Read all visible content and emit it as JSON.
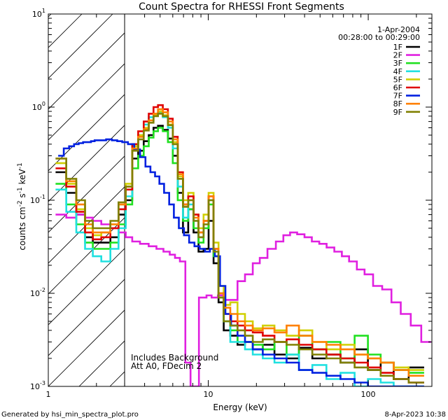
{
  "chart_data": {
    "type": "line",
    "title": "Count Spectra for RHESSI Front Segments",
    "xlabel": "Energy (keV)",
    "ylabel_parts": {
      "base": "counts cm",
      "exp1": "-2",
      "mid": " s",
      "exp2": "-1",
      "mid2": " keV",
      "exp3": "-1"
    },
    "x_scale": "log",
    "y_scale": "log",
    "xlim": [
      1,
      250
    ],
    "ylim": [
      0.001,
      10
    ],
    "x_ticks": [
      {
        "value": 1,
        "label": "1"
      },
      {
        "value": 10,
        "label": "10"
      },
      {
        "value": 100,
        "label": "100"
      }
    ],
    "y_ticks": [
      {
        "value": 0.001,
        "base": "10",
        "exp": "-3"
      },
      {
        "value": 0.01,
        "base": "10",
        "exp": "-2"
      },
      {
        "value": 0.1,
        "base": "10",
        "exp": "-1"
      },
      {
        "value": 1,
        "base": "10",
        "exp": "0"
      },
      {
        "value": 10,
        "base": "10",
        "exp": "1"
      }
    ],
    "hatched_region": {
      "x_from": 1,
      "x_to": 3
    },
    "legend": {
      "date": "1-Apr-2004",
      "time_range": "00:28:00 to 00:29:00",
      "position": "top-right"
    },
    "annotations": [
      "Includes Background",
      "Att A0, FDecim 2"
    ],
    "series": [
      {
        "name": "1F",
        "color": "#000000",
        "x": [
          1.2,
          1.4,
          1.6,
          1.8,
          2.0,
          2.3,
          2.6,
          2.9,
          3.2,
          3.5,
          3.8,
          4.1,
          4.4,
          4.7,
          5.0,
          5.4,
          5.8,
          6.2,
          6.7,
          7.2,
          7.8,
          8.4,
          9.0,
          9.7,
          10.4,
          11.2,
          12.0,
          13.0,
          14.5,
          16.0,
          18.0,
          20.0,
          24.0,
          28.0,
          34.0,
          40.0,
          50.0,
          60.0,
          75.0,
          90.0,
          110.0,
          130.0,
          160.0,
          200.0
        ],
        "y": [
          0.2,
          0.12,
          0.07,
          0.04,
          0.035,
          0.035,
          0.04,
          0.07,
          0.1,
          0.28,
          0.34,
          0.43,
          0.5,
          0.6,
          0.63,
          0.57,
          0.46,
          0.3,
          0.12,
          0.045,
          0.08,
          0.045,
          0.028,
          0.03,
          0.06,
          0.021,
          0.008,
          0.004,
          0.0035,
          0.0028,
          0.003,
          0.0025,
          0.0028,
          0.0022,
          0.002,
          0.0026,
          0.002,
          0.0022,
          0.0018,
          0.0025,
          0.0015,
          0.0018,
          0.0012,
          0.0016
        ]
      },
      {
        "name": "2F",
        "color": "#e020e0",
        "x": [
          1.2,
          1.4,
          1.6,
          1.8,
          2.0,
          2.3,
          2.6,
          2.9,
          3.2,
          3.5,
          4.0,
          4.5,
          5.0,
          5.5,
          6.0,
          6.4,
          6.9,
          7.5,
          8.0,
          8.5,
          9.0,
          9.5,
          10.0,
          11.0,
          12.0,
          13.0,
          14.5,
          16.0,
          18.0,
          20.0,
          22.0,
          25.0,
          28.0,
          31.0,
          34.0,
          38.0,
          42.0,
          47.0,
          52.0,
          58.0,
          65.0,
          72.0,
          80.0,
          90.0,
          100.0,
          115.0,
          130.0,
          150.0,
          170.0,
          200.0,
          230.0
        ],
        "y": [
          0.07,
          0.065,
          0.07,
          0.065,
          0.06,
          0.055,
          0.05,
          0.045,
          0.04,
          0.036,
          0.034,
          0.032,
          0.03,
          0.028,
          0.026,
          0.024,
          0.022,
          0.0018,
          0.001,
          0.001,
          0.009,
          0.009,
          0.0095,
          0.009,
          0.0095,
          0.0085,
          0.0085,
          0.0135,
          0.016,
          0.021,
          0.024,
          0.03,
          0.036,
          0.042,
          0.045,
          0.043,
          0.04,
          0.036,
          0.034,
          0.031,
          0.028,
          0.025,
          0.022,
          0.018,
          0.016,
          0.012,
          0.011,
          0.008,
          0.006,
          0.0045,
          0.003
        ]
      },
      {
        "name": "3F",
        "color": "#20e020",
        "x": [
          1.2,
          1.4,
          1.6,
          1.8,
          2.0,
          2.3,
          2.6,
          2.9,
          3.2,
          3.5,
          3.8,
          4.1,
          4.4,
          4.7,
          5.0,
          5.4,
          5.8,
          6.2,
          6.7,
          7.2,
          7.8,
          8.4,
          9.0,
          9.7,
          10.4,
          11.2,
          12.0,
          13.0,
          14.5,
          16.0,
          18.0,
          20.0,
          24.0,
          28.0,
          34.0,
          40.0,
          50.0,
          60.0,
          75.0,
          90.0,
          110.0,
          130.0,
          160.0,
          200.0
        ],
        "y": [
          0.15,
          0.09,
          0.055,
          0.035,
          0.03,
          0.03,
          0.035,
          0.055,
          0.09,
          0.22,
          0.3,
          0.38,
          0.47,
          0.55,
          0.6,
          0.55,
          0.42,
          0.25,
          0.1,
          0.06,
          0.08,
          0.05,
          0.035,
          0.05,
          0.09,
          0.025,
          0.009,
          0.005,
          0.004,
          0.003,
          0.003,
          0.0028,
          0.0025,
          0.003,
          0.0022,
          0.0035,
          0.0025,
          0.003,
          0.002,
          0.0035,
          0.0022,
          0.0018,
          0.0015,
          0.0014
        ]
      },
      {
        "name": "4F",
        "color": "#20e0e0",
        "x": [
          1.2,
          1.4,
          1.6,
          1.8,
          2.0,
          2.3,
          2.6,
          2.9,
          3.2,
          3.5,
          3.8,
          4.1,
          4.4,
          4.7,
          5.0,
          5.4,
          5.8,
          6.2,
          6.7,
          7.2,
          7.8,
          8.4,
          9.0,
          9.7,
          10.4,
          11.2,
          12.0,
          13.0,
          14.5,
          16.0,
          18.0,
          20.0,
          24.0,
          28.0,
          34.0,
          40.0,
          50.0,
          60.0,
          75.0,
          90.0,
          110.0,
          130.0,
          160.0,
          200.0
        ],
        "y": [
          0.13,
          0.075,
          0.045,
          0.03,
          0.025,
          0.022,
          0.03,
          0.05,
          0.11,
          0.35,
          0.5,
          0.65,
          0.78,
          0.85,
          0.88,
          0.78,
          0.6,
          0.36,
          0.14,
          0.065,
          0.09,
          0.06,
          0.04,
          0.06,
          0.1,
          0.03,
          0.01,
          0.005,
          0.003,
          0.003,
          0.0025,
          0.0022,
          0.002,
          0.0018,
          0.0022,
          0.0015,
          0.0017,
          0.0012,
          0.0014,
          0.001,
          0.0012,
          0.0011,
          0.001,
          0.001
        ]
      },
      {
        "name": "5F",
        "color": "#d0d000",
        "x": [
          1.2,
          1.4,
          1.6,
          1.8,
          2.0,
          2.3,
          2.6,
          2.9,
          3.2,
          3.5,
          3.8,
          4.1,
          4.4,
          4.7,
          5.0,
          5.4,
          5.8,
          6.2,
          6.7,
          7.2,
          7.8,
          8.4,
          9.0,
          9.7,
          10.4,
          11.2,
          12.0,
          13.0,
          14.5,
          16.0,
          18.0,
          20.0,
          24.0,
          28.0,
          34.0,
          40.0,
          50.0,
          60.0,
          75.0,
          90.0,
          110.0,
          130.0,
          160.0,
          200.0
        ],
        "y": [
          0.25,
          0.15,
          0.08,
          0.05,
          0.042,
          0.045,
          0.055,
          0.09,
          0.15,
          0.38,
          0.5,
          0.6,
          0.72,
          0.82,
          0.9,
          0.82,
          0.65,
          0.42,
          0.18,
          0.1,
          0.12,
          0.07,
          0.05,
          0.07,
          0.12,
          0.035,
          0.012,
          0.0075,
          0.008,
          0.006,
          0.005,
          0.0042,
          0.0045,
          0.004,
          0.0035,
          0.004,
          0.003,
          0.0025,
          0.0028,
          0.0022,
          0.002,
          0.0018,
          0.0016,
          0.0015
        ]
      },
      {
        "name": "6F",
        "color": "#e00000",
        "x": [
          1.2,
          1.4,
          1.6,
          1.8,
          2.0,
          2.3,
          2.6,
          2.9,
          3.2,
          3.5,
          3.8,
          4.1,
          4.4,
          4.7,
          5.0,
          5.4,
          5.8,
          6.2,
          6.7,
          7.2,
          7.8,
          8.4,
          9.0,
          9.7,
          10.4,
          11.2,
          12.0,
          13.0,
          14.5,
          16.0,
          18.0,
          20.0,
          24.0,
          28.0,
          34.0,
          40.0,
          50.0,
          60.0,
          75.0,
          90.0,
          110.0,
          130.0,
          160.0,
          200.0
        ],
        "y": [
          0.22,
          0.14,
          0.075,
          0.045,
          0.038,
          0.04,
          0.05,
          0.08,
          0.13,
          0.4,
          0.55,
          0.7,
          0.85,
          1.0,
          1.05,
          0.95,
          0.75,
          0.48,
          0.2,
          0.09,
          0.11,
          0.07,
          0.045,
          0.06,
          0.11,
          0.03,
          0.01,
          0.006,
          0.005,
          0.0045,
          0.004,
          0.0038,
          0.0035,
          0.003,
          0.0032,
          0.0028,
          0.0025,
          0.0022,
          0.002,
          0.0018,
          0.0016,
          0.0014,
          0.0012,
          0.0011
        ]
      },
      {
        "name": "7F",
        "color": "#0020e0",
        "x": [
          1.2,
          1.3,
          1.4,
          1.5,
          1.6,
          1.7,
          1.8,
          1.9,
          2.0,
          2.2,
          2.4,
          2.6,
          2.8,
          3.0,
          3.3,
          3.6,
          3.9,
          4.2,
          4.5,
          4.8,
          5.1,
          5.5,
          5.9,
          6.3,
          6.8,
          7.3,
          7.9,
          8.5,
          9.2,
          9.9,
          10.6,
          11.4,
          12.3,
          13.3,
          14.5,
          16.0,
          18.0,
          20.0,
          24.0,
          28.0,
          34.0,
          40.0,
          50.0,
          60.0,
          75.0,
          90.0,
          110.0,
          130.0,
          160.0,
          200.0
        ],
        "y": [
          0.3,
          0.36,
          0.38,
          0.4,
          0.41,
          0.42,
          0.42,
          0.43,
          0.44,
          0.44,
          0.45,
          0.44,
          0.43,
          0.42,
          0.4,
          0.35,
          0.29,
          0.23,
          0.2,
          0.18,
          0.15,
          0.12,
          0.09,
          0.065,
          0.05,
          0.042,
          0.035,
          0.032,
          0.03,
          0.028,
          0.03,
          0.025,
          0.012,
          0.006,
          0.0045,
          0.0035,
          0.003,
          0.0025,
          0.0022,
          0.002,
          0.0018,
          0.0015,
          0.0014,
          0.0013,
          0.0012,
          0.0011,
          0.001,
          0.001,
          0.001,
          0.001
        ]
      },
      {
        "name": "8F",
        "color": "#ff8000",
        "x": [
          1.2,
          1.4,
          1.6,
          1.8,
          2.0,
          2.3,
          2.6,
          2.9,
          3.2,
          3.5,
          3.8,
          4.1,
          4.4,
          4.7,
          5.0,
          5.4,
          5.8,
          6.2,
          6.7,
          7.2,
          7.8,
          8.4,
          9.0,
          9.7,
          10.4,
          11.2,
          12.0,
          13.0,
          14.5,
          16.0,
          18.0,
          20.0,
          24.0,
          28.0,
          34.0,
          40.0,
          50.0,
          60.0,
          75.0,
          90.0,
          110.0,
          130.0,
          160.0,
          200.0
        ],
        "y": [
          0.28,
          0.16,
          0.09,
          0.055,
          0.045,
          0.045,
          0.055,
          0.09,
          0.14,
          0.36,
          0.48,
          0.58,
          0.72,
          0.85,
          0.95,
          0.88,
          0.7,
          0.45,
          0.19,
          0.09,
          0.1,
          0.065,
          0.045,
          0.06,
          0.11,
          0.03,
          0.01,
          0.007,
          0.006,
          0.005,
          0.0045,
          0.004,
          0.0042,
          0.0038,
          0.0045,
          0.0035,
          0.003,
          0.0028,
          0.0025,
          0.0022,
          0.002,
          0.0018,
          0.0015,
          0.0013
        ]
      },
      {
        "name": "9F",
        "color": "#808000",
        "x": [
          1.2,
          1.4,
          1.6,
          1.8,
          2.0,
          2.3,
          2.6,
          2.9,
          3.2,
          3.5,
          3.8,
          4.1,
          4.4,
          4.7,
          5.0,
          5.4,
          5.8,
          6.2,
          6.7,
          7.2,
          7.8,
          8.4,
          9.0,
          9.7,
          10.4,
          11.2,
          12.0,
          13.0,
          14.5,
          16.0,
          18.0,
          20.0,
          24.0,
          28.0,
          34.0,
          40.0,
          50.0,
          60.0,
          75.0,
          90.0,
          110.0,
          130.0,
          160.0,
          200.0
        ],
        "y": [
          0.28,
          0.17,
          0.1,
          0.06,
          0.05,
          0.05,
          0.06,
          0.095,
          0.14,
          0.34,
          0.45,
          0.56,
          0.68,
          0.8,
          0.85,
          0.8,
          0.64,
          0.4,
          0.17,
          0.085,
          0.1,
          0.06,
          0.04,
          0.055,
          0.1,
          0.028,
          0.009,
          0.005,
          0.0045,
          0.004,
          0.0035,
          0.003,
          0.0032,
          0.003,
          0.0028,
          0.0025,
          0.0022,
          0.002,
          0.0018,
          0.0016,
          0.0015,
          0.0013,
          0.0012,
          0.0011
        ]
      }
    ]
  },
  "footer": {
    "generated_by": "Generated by hsi_min_spectra_plot.pro",
    "timestamp": "8-Apr-2023 10:38"
  }
}
